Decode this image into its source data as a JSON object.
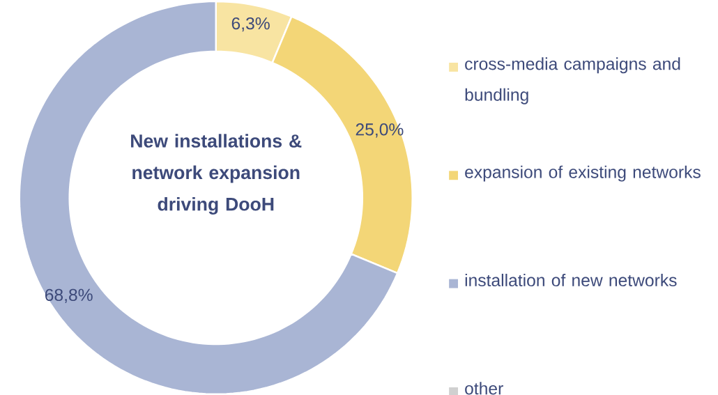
{
  "chart_data": {
    "type": "donut",
    "title": "New installations & network expansion driving DooH",
    "categories": [
      "cross-media campaigns and bundling",
      "expansion of existing networks",
      "installation of new networks",
      "other"
    ],
    "values": [
      6.3,
      25.0,
      68.8,
      0
    ],
    "colors": [
      "#f8e4a2",
      "#f3d677",
      "#a9b5d4",
      "#d0d0d0"
    ],
    "value_labels": [
      "6,3%",
      "25,0%",
      "68,8%",
      null
    ],
    "legend": "right"
  }
}
